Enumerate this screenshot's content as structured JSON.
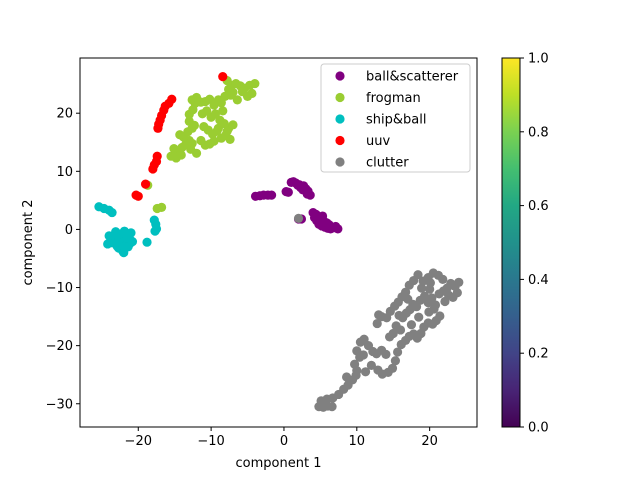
{
  "chart_data": {
    "type": "scatter",
    "xlabel": "component 1",
    "ylabel": "component 2",
    "xlim": [
      -28,
      26.5
    ],
    "ylim": [
      -34,
      29.5
    ],
    "xticks": [
      -20,
      -10,
      0,
      10,
      20
    ],
    "yticks": [
      -30,
      -20,
      -10,
      0,
      10,
      20
    ],
    "legend_position": "top-right",
    "colorbar": {
      "colormap": "viridis",
      "range": [
        0.0,
        1.0
      ],
      "ticks": [
        0.0,
        0.2,
        0.4,
        0.6,
        0.8,
        1.0
      ],
      "tick_labels": [
        "0.0",
        "0.2",
        "0.4",
        "0.6",
        "0.8",
        "1.0"
      ]
    },
    "series": [
      {
        "name": "ball&scatterer",
        "color": "#800080",
        "points": [
          [
            -3.9,
            5.7
          ],
          [
            -3.3,
            5.8
          ],
          [
            -2.8,
            5.9
          ],
          [
            -2.2,
            5.9
          ],
          [
            -1.7,
            5.9
          ],
          [
            0.3,
            6.5
          ],
          [
            0.6,
            6.4
          ],
          [
            1.0,
            8.1
          ],
          [
            1.3,
            8.2
          ],
          [
            1.6,
            8.0
          ],
          [
            1.9,
            7.6
          ],
          [
            2.1,
            7.7
          ],
          [
            2.4,
            7.4
          ],
          [
            2.7,
            7.5
          ],
          [
            3.0,
            7.0
          ],
          [
            3.3,
            6.6
          ],
          [
            3.6,
            5.9
          ],
          [
            3.2,
            6.1
          ],
          [
            2.6,
            6.8
          ],
          [
            2.3,
            7.2
          ],
          [
            4.0,
            2.9
          ],
          [
            4.4,
            2.6
          ],
          [
            4.7,
            2.2
          ],
          [
            5.0,
            1.9
          ],
          [
            4.5,
            1.5
          ],
          [
            4.8,
            0.9
          ],
          [
            5.2,
            0.6
          ],
          [
            5.6,
            0.4
          ],
          [
            6.0,
            0.2
          ],
          [
            6.4,
            0.1
          ],
          [
            6.8,
            0.3
          ],
          [
            7.1,
            0.5
          ],
          [
            7.4,
            0.1
          ],
          [
            5.9,
            1.1
          ],
          [
            5.5,
            1.4
          ],
          [
            5.3,
            2.3
          ],
          [
            4.2,
            2.0
          ],
          [
            6.2,
            0.8
          ],
          [
            2.0,
            1.8
          ],
          [
            2.4,
            1.8
          ]
        ]
      },
      {
        "name": "frogman",
        "color": "#9acd32",
        "points": [
          [
            -14.8,
            12.3
          ],
          [
            -14.5,
            13.4
          ],
          [
            -14.0,
            14.1
          ],
          [
            -13.5,
            14.6
          ],
          [
            -13.0,
            15.3
          ],
          [
            -12.6,
            14.8
          ],
          [
            -13.8,
            15.9
          ],
          [
            -14.3,
            16.3
          ],
          [
            -13.2,
            16.8
          ],
          [
            -12.6,
            17.4
          ],
          [
            -13.0,
            18.6
          ],
          [
            -13.0,
            19.8
          ],
          [
            -12.5,
            20.6
          ],
          [
            -12.2,
            21.7
          ],
          [
            -12.6,
            22.3
          ],
          [
            -12.0,
            22.7
          ],
          [
            -11.4,
            21.9
          ],
          [
            -10.8,
            22.0
          ],
          [
            -10.2,
            22.4
          ],
          [
            -9.6,
            21.4
          ],
          [
            -9.0,
            22.3
          ],
          [
            -8.6,
            21.8
          ],
          [
            -8.1,
            22.9
          ],
          [
            -7.6,
            24.1
          ],
          [
            -7.2,
            24.8
          ],
          [
            -6.6,
            25.1
          ],
          [
            -6.0,
            24.7
          ],
          [
            -5.4,
            24.3
          ],
          [
            -4.7,
            24.8
          ],
          [
            -4.0,
            25.1
          ],
          [
            -4.4,
            23.4
          ],
          [
            -5.0,
            22.9
          ],
          [
            -5.7,
            23.7
          ],
          [
            -6.4,
            22.3
          ],
          [
            -7.0,
            23.6
          ],
          [
            -7.8,
            25.6
          ],
          [
            -7.3,
            23.1
          ],
          [
            -11.2,
            19.9
          ],
          [
            -10.6,
            20.4
          ],
          [
            -10.0,
            19.3
          ],
          [
            -9.4,
            19.9
          ],
          [
            -8.8,
            18.8
          ],
          [
            -8.2,
            18.2
          ],
          [
            -7.6,
            17.4
          ],
          [
            -7.0,
            18.0
          ],
          [
            -11.0,
            17.7
          ],
          [
            -10.4,
            17.1
          ],
          [
            -9.8,
            16.4
          ],
          [
            -9.2,
            16.9
          ],
          [
            -8.6,
            15.7
          ],
          [
            -8.0,
            16.2
          ],
          [
            -7.4,
            15.5
          ],
          [
            -11.4,
            15.3
          ],
          [
            -10.8,
            14.5
          ],
          [
            -10.2,
            14.7
          ],
          [
            -9.6,
            15.2
          ],
          [
            -12.0,
            13.1
          ],
          [
            -12.8,
            13.8
          ],
          [
            -14.1,
            12.8
          ],
          [
            -15.5,
            12.6
          ],
          [
            -15.1,
            13.9
          ],
          [
            -12.3,
            17.9
          ],
          [
            -9.0,
            17.4
          ],
          [
            -8.4,
            20.4
          ],
          [
            -7.8,
            16.9
          ],
          [
            -17.4,
            3.6
          ],
          [
            -16.8,
            3.8
          ],
          [
            -18.7,
            7.6
          ]
        ]
      },
      {
        "name": "ship&ball",
        "color": "#00bfbf",
        "points": [
          [
            -25.4,
            3.9
          ],
          [
            -24.7,
            3.6
          ],
          [
            -24.0,
            3.3
          ],
          [
            -23.6,
            2.9
          ],
          [
            -17.8,
            1.6
          ],
          [
            -17.6,
            0.9
          ],
          [
            -17.5,
            0.1
          ],
          [
            -17.7,
            -0.3
          ],
          [
            -18.8,
            -2.2
          ],
          [
            -22.0,
            -2.0
          ],
          [
            -22.6,
            -0.8
          ],
          [
            -22.9,
            -2.9
          ],
          [
            -21.5,
            -0.9
          ],
          [
            -21.2,
            -2.5
          ],
          [
            -23.4,
            -1.7
          ],
          [
            -22.2,
            -3.6
          ],
          [
            -22.9,
            -1.2
          ],
          [
            -21.7,
            -2.3
          ],
          [
            -21.9,
            -0.3
          ],
          [
            -22.7,
            -3.2
          ],
          [
            -21.1,
            -1.8
          ],
          [
            -23.6,
            -2.3
          ],
          [
            -22.4,
            -1.5
          ],
          [
            -21.4,
            -3.0
          ],
          [
            -24.0,
            -1.1
          ],
          [
            -22.0,
            -4.0
          ],
          [
            -21.0,
            -0.6
          ],
          [
            -23.1,
            -0.4
          ],
          [
            -20.8,
            -2.1
          ],
          [
            -24.2,
            -2.5
          ],
          [
            -22.5,
            -2.6
          ],
          [
            -21.6,
            -1.4
          ],
          [
            -22.8,
            -2.2
          ],
          [
            -21.3,
            -1.2
          ]
        ]
      },
      {
        "name": "uuv",
        "color": "#ff0000",
        "points": [
          [
            -8.4,
            26.3
          ],
          [
            -15.4,
            22.4
          ],
          [
            -15.8,
            21.7
          ],
          [
            -16.3,
            21.2
          ],
          [
            -16.5,
            20.5
          ],
          [
            -16.8,
            19.6
          ],
          [
            -17.0,
            18.8
          ],
          [
            -17.2,
            18.1
          ],
          [
            -17.3,
            17.4
          ],
          [
            -17.4,
            12.6
          ],
          [
            -17.5,
            11.7
          ],
          [
            -17.8,
            11.1
          ],
          [
            -18.0,
            10.4
          ],
          [
            -19.0,
            7.8
          ],
          [
            -20.0,
            5.7
          ],
          [
            -20.3,
            5.9
          ]
        ]
      },
      {
        "name": "clutter",
        "color": "#808080",
        "points": [
          [
            4.8,
            -30.5
          ],
          [
            5.4,
            -30.6
          ],
          [
            6.0,
            -30.4
          ],
          [
            6.6,
            -30.5
          ],
          [
            5.1,
            -29.5
          ],
          [
            5.9,
            -29.2
          ],
          [
            6.7,
            -29.0
          ],
          [
            7.5,
            -28.4
          ],
          [
            8.2,
            -27.5
          ],
          [
            8.8,
            -26.8
          ],
          [
            9.4,
            -25.9
          ],
          [
            8.6,
            -25.4
          ],
          [
            9.9,
            -25.1
          ],
          [
            10.0,
            -24.3
          ],
          [
            9.7,
            -23.2
          ],
          [
            10.4,
            -22.0
          ],
          [
            10.0,
            -20.9
          ],
          [
            10.5,
            -19.4
          ],
          [
            11.0,
            -18.9
          ],
          [
            11.6,
            -20.0
          ],
          [
            12.2,
            -21.0
          ],
          [
            12.7,
            -21.4
          ],
          [
            13.4,
            -20.8
          ],
          [
            14.0,
            -21.5
          ],
          [
            12.0,
            -23.4
          ],
          [
            12.9,
            -24.2
          ],
          [
            13.5,
            -24.9
          ],
          [
            14.3,
            -24.6
          ],
          [
            14.9,
            -23.9
          ],
          [
            15.3,
            -22.6
          ],
          [
            15.6,
            -21.1
          ],
          [
            16.1,
            -19.8
          ],
          [
            16.7,
            -19.1
          ],
          [
            17.2,
            -18.4
          ],
          [
            17.8,
            -18.0
          ],
          [
            18.3,
            -18.7
          ],
          [
            18.8,
            -17.9
          ],
          [
            19.2,
            -16.8
          ],
          [
            19.8,
            -16.1
          ],
          [
            20.4,
            -16.3
          ],
          [
            20.9,
            -15.7
          ],
          [
            21.4,
            -14.9
          ],
          [
            16.0,
            -17.3
          ],
          [
            15.4,
            -16.6
          ],
          [
            16.3,
            -15.2
          ],
          [
            16.8,
            -14.4
          ],
          [
            17.3,
            -13.8
          ],
          [
            17.7,
            -12.9
          ],
          [
            18.2,
            -13.3
          ],
          [
            18.7,
            -12.2
          ],
          [
            19.3,
            -11.5
          ],
          [
            19.8,
            -12.6
          ],
          [
            20.3,
            -11.8
          ],
          [
            20.8,
            -13.0
          ],
          [
            21.3,
            -11.1
          ],
          [
            21.9,
            -10.6
          ],
          [
            22.4,
            -10.1
          ],
          [
            22.9,
            -9.3
          ],
          [
            23.5,
            -9.8
          ],
          [
            24.0,
            -9.1
          ],
          [
            23.8,
            -10.9
          ],
          [
            23.2,
            -11.7
          ],
          [
            22.6,
            -11.3
          ],
          [
            21.8,
            -8.6
          ],
          [
            21.2,
            -7.9
          ],
          [
            20.5,
            -7.5
          ],
          [
            19.8,
            -8.3
          ],
          [
            19.1,
            -8.9
          ],
          [
            18.4,
            -7.8
          ],
          [
            17.8,
            -8.8
          ],
          [
            17.2,
            -9.6
          ],
          [
            16.7,
            -10.8
          ],
          [
            16.2,
            -11.6
          ],
          [
            15.7,
            -12.5
          ],
          [
            15.2,
            -13.2
          ],
          [
            14.6,
            -14.1
          ],
          [
            14.1,
            -15.2
          ],
          [
            13.4,
            -15.0
          ],
          [
            12.8,
            -16.2
          ],
          [
            13.0,
            -14.7
          ],
          [
            15.0,
            -17.9
          ],
          [
            14.5,
            -18.5
          ],
          [
            17.5,
            -16.4
          ],
          [
            18.5,
            -15.1
          ],
          [
            19.9,
            -14.2
          ],
          [
            20.6,
            -13.7
          ],
          [
            15.8,
            -14.8
          ],
          [
            17.0,
            -12.0
          ],
          [
            18.9,
            -10.1
          ],
          [
            20.0,
            -10.3
          ],
          [
            22.1,
            -12.4
          ],
          [
            20.1,
            -9.2
          ],
          [
            2.0,
            1.9
          ],
          [
            11.2,
            -24.5
          ],
          [
            10.9,
            -21.6
          ]
        ]
      }
    ]
  }
}
